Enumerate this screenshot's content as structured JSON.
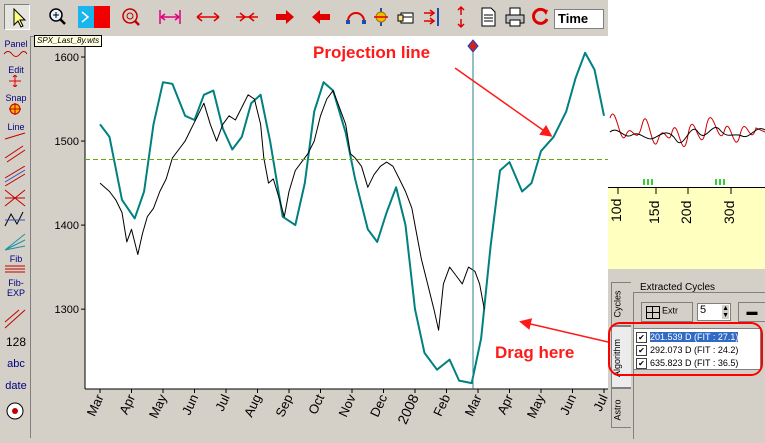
{
  "toolbar": {
    "time_label": "Time",
    "buttons": [
      "pointer-tool",
      "zoom-tool",
      "color-tool",
      "zoom-target-tool",
      "fit-width",
      "stretch-width",
      "compress-width",
      "scroll-right",
      "scroll-left",
      "arc-tool",
      "balance-tool",
      "hand-tool",
      "compare-tool",
      "up-down-tool",
      "page-tool",
      "print-tool",
      "refresh-tool"
    ]
  },
  "tooltip": "SPX_Last_8y.wts",
  "left_toolbar": {
    "panel": "Panel",
    "edit": "Edit",
    "snap": "Snap",
    "line": "Line",
    "fib": "Fib",
    "fib_exp": "Fib-EXP",
    "num": "128",
    "abc": "abc",
    "date": "date"
  },
  "chart_data": {
    "type": "line",
    "x_ticks": [
      "Mar",
      "Apr",
      "May",
      "Jun",
      "Jul",
      "Aug",
      "Sep",
      "Oct",
      "Nov",
      "Dec",
      "2008",
      "Feb",
      "Mar",
      "Apr",
      "May",
      "Jun",
      "Jul"
    ],
    "y_ticks": [
      "1600",
      "1500",
      "1400",
      "1300"
    ],
    "ylim": [
      1205,
      1625
    ],
    "horizontal_line": 1478,
    "series": [
      {
        "color": "#008080",
        "points": [
          [
            0,
            1520
          ],
          [
            0.3,
            1505
          ],
          [
            0.7,
            1430
          ],
          [
            1.1,
            1408
          ],
          [
            1.4,
            1440
          ],
          [
            1.7,
            1520
          ],
          [
            2.0,
            1570
          ],
          [
            2.3,
            1568
          ],
          [
            2.7,
            1530
          ],
          [
            3.0,
            1525
          ],
          [
            3.3,
            1555
          ],
          [
            3.6,
            1560
          ],
          [
            3.9,
            1515
          ],
          [
            4.2,
            1490
          ],
          [
            4.5,
            1505
          ],
          [
            4.8,
            1545
          ],
          [
            5.1,
            1555
          ],
          [
            5.4,
            1500
          ],
          [
            5.8,
            1410
          ],
          [
            6.2,
            1400
          ],
          [
            6.5,
            1450
          ],
          [
            6.8,
            1535
          ],
          [
            7.1,
            1570
          ],
          [
            7.4,
            1560
          ],
          [
            7.8,
            1510
          ],
          [
            8.1,
            1455
          ],
          [
            8.5,
            1395
          ],
          [
            8.8,
            1380
          ],
          [
            9.1,
            1415
          ],
          [
            9.4,
            1445
          ],
          [
            9.7,
            1400
          ],
          [
            10.0,
            1300
          ],
          [
            10.3,
            1248
          ],
          [
            10.7,
            1228
          ],
          [
            11.1,
            1240
          ],
          [
            11.4,
            1215
          ],
          [
            11.8,
            1212
          ],
          [
            12.1,
            1265
          ],
          [
            12.4,
            1375
          ],
          [
            12.7,
            1465
          ],
          [
            13.0,
            1475
          ],
          [
            13.4,
            1440
          ],
          [
            13.7,
            1450
          ],
          [
            14.0,
            1488
          ],
          [
            14.4,
            1505
          ],
          [
            14.8,
            1535
          ],
          [
            15.1,
            1575
          ],
          [
            15.4,
            1605
          ],
          [
            15.7,
            1585
          ],
          [
            16.0,
            1530
          ]
        ]
      },
      {
        "color": "#000000",
        "points": [
          [
            0,
            1450
          ],
          [
            0.3,
            1440
          ],
          [
            0.5,
            1430
          ],
          [
            0.7,
            1415
          ],
          [
            0.85,
            1380
          ],
          [
            1.0,
            1395
          ],
          [
            1.2,
            1365
          ],
          [
            1.35,
            1390
          ],
          [
            1.5,
            1410
          ],
          [
            1.7,
            1420
          ],
          [
            1.9,
            1440
          ],
          [
            2.1,
            1455
          ],
          [
            2.3,
            1480
          ],
          [
            2.5,
            1490
          ],
          [
            2.7,
            1500
          ],
          [
            2.9,
            1515
          ],
          [
            3.1,
            1530
          ],
          [
            3.3,
            1545
          ],
          [
            3.5,
            1520
          ],
          [
            3.7,
            1500
          ],
          [
            3.9,
            1520
          ],
          [
            4.1,
            1530
          ],
          [
            4.3,
            1525
          ],
          [
            4.5,
            1540
          ],
          [
            4.7,
            1555
          ],
          [
            4.9,
            1550
          ],
          [
            5.1,
            1520
          ],
          [
            5.2,
            1480
          ],
          [
            5.35,
            1450
          ],
          [
            5.5,
            1455
          ],
          [
            5.7,
            1430
          ],
          [
            5.85,
            1410
          ],
          [
            6.0,
            1440
          ],
          [
            6.2,
            1465
          ],
          [
            6.4,
            1475
          ],
          [
            6.6,
            1485
          ],
          [
            6.8,
            1500
          ],
          [
            7.0,
            1530
          ],
          [
            7.2,
            1550
          ],
          [
            7.4,
            1560
          ],
          [
            7.6,
            1540
          ],
          [
            7.8,
            1520
          ],
          [
            7.95,
            1485
          ],
          [
            8.1,
            1480
          ],
          [
            8.3,
            1470
          ],
          [
            8.5,
            1445
          ],
          [
            8.7,
            1460
          ],
          [
            8.9,
            1470
          ],
          [
            9.1,
            1475
          ],
          [
            9.3,
            1470
          ],
          [
            9.5,
            1455
          ],
          [
            9.7,
            1440
          ],
          [
            9.9,
            1420
          ],
          [
            10.0,
            1400
          ],
          [
            10.2,
            1360
          ],
          [
            10.4,
            1330
          ],
          [
            10.6,
            1300
          ],
          [
            10.75,
            1275
          ],
          [
            10.9,
            1330
          ],
          [
            11.1,
            1350
          ],
          [
            11.3,
            1340
          ],
          [
            11.5,
            1330
          ],
          [
            11.7,
            1350
          ],
          [
            11.9,
            1345
          ],
          [
            12.05,
            1330
          ],
          [
            12.2,
            1300
          ]
        ]
      }
    ]
  },
  "annotations": {
    "projection_line": "Projection line",
    "drag_here": "Drag here"
  },
  "right_panel": {
    "mini_ticks": [
      "10d",
      "15d",
      "20d",
      "30d"
    ],
    "extracted_title": "Extracted Cycles",
    "extr_button": "Extr",
    "spin_value": "5",
    "tabs": [
      "Cycles",
      "Algorithm",
      "Astro"
    ],
    "cycles": [
      {
        "label": "201.539 D  (FIT : 27.1)",
        "checked": true,
        "selected": true
      },
      {
        "label": "292.073 D  (FIT : 24.2)",
        "checked": true,
        "selected": false
      },
      {
        "label": "635.823 D  (FIT : 36.5)",
        "checked": true,
        "selected": false
      }
    ]
  },
  "colors": {
    "wave": "#008080",
    "price": "#000000",
    "projection": "#66aa00",
    "annotation": "#ff1a1a",
    "selection": "#316ac5"
  }
}
